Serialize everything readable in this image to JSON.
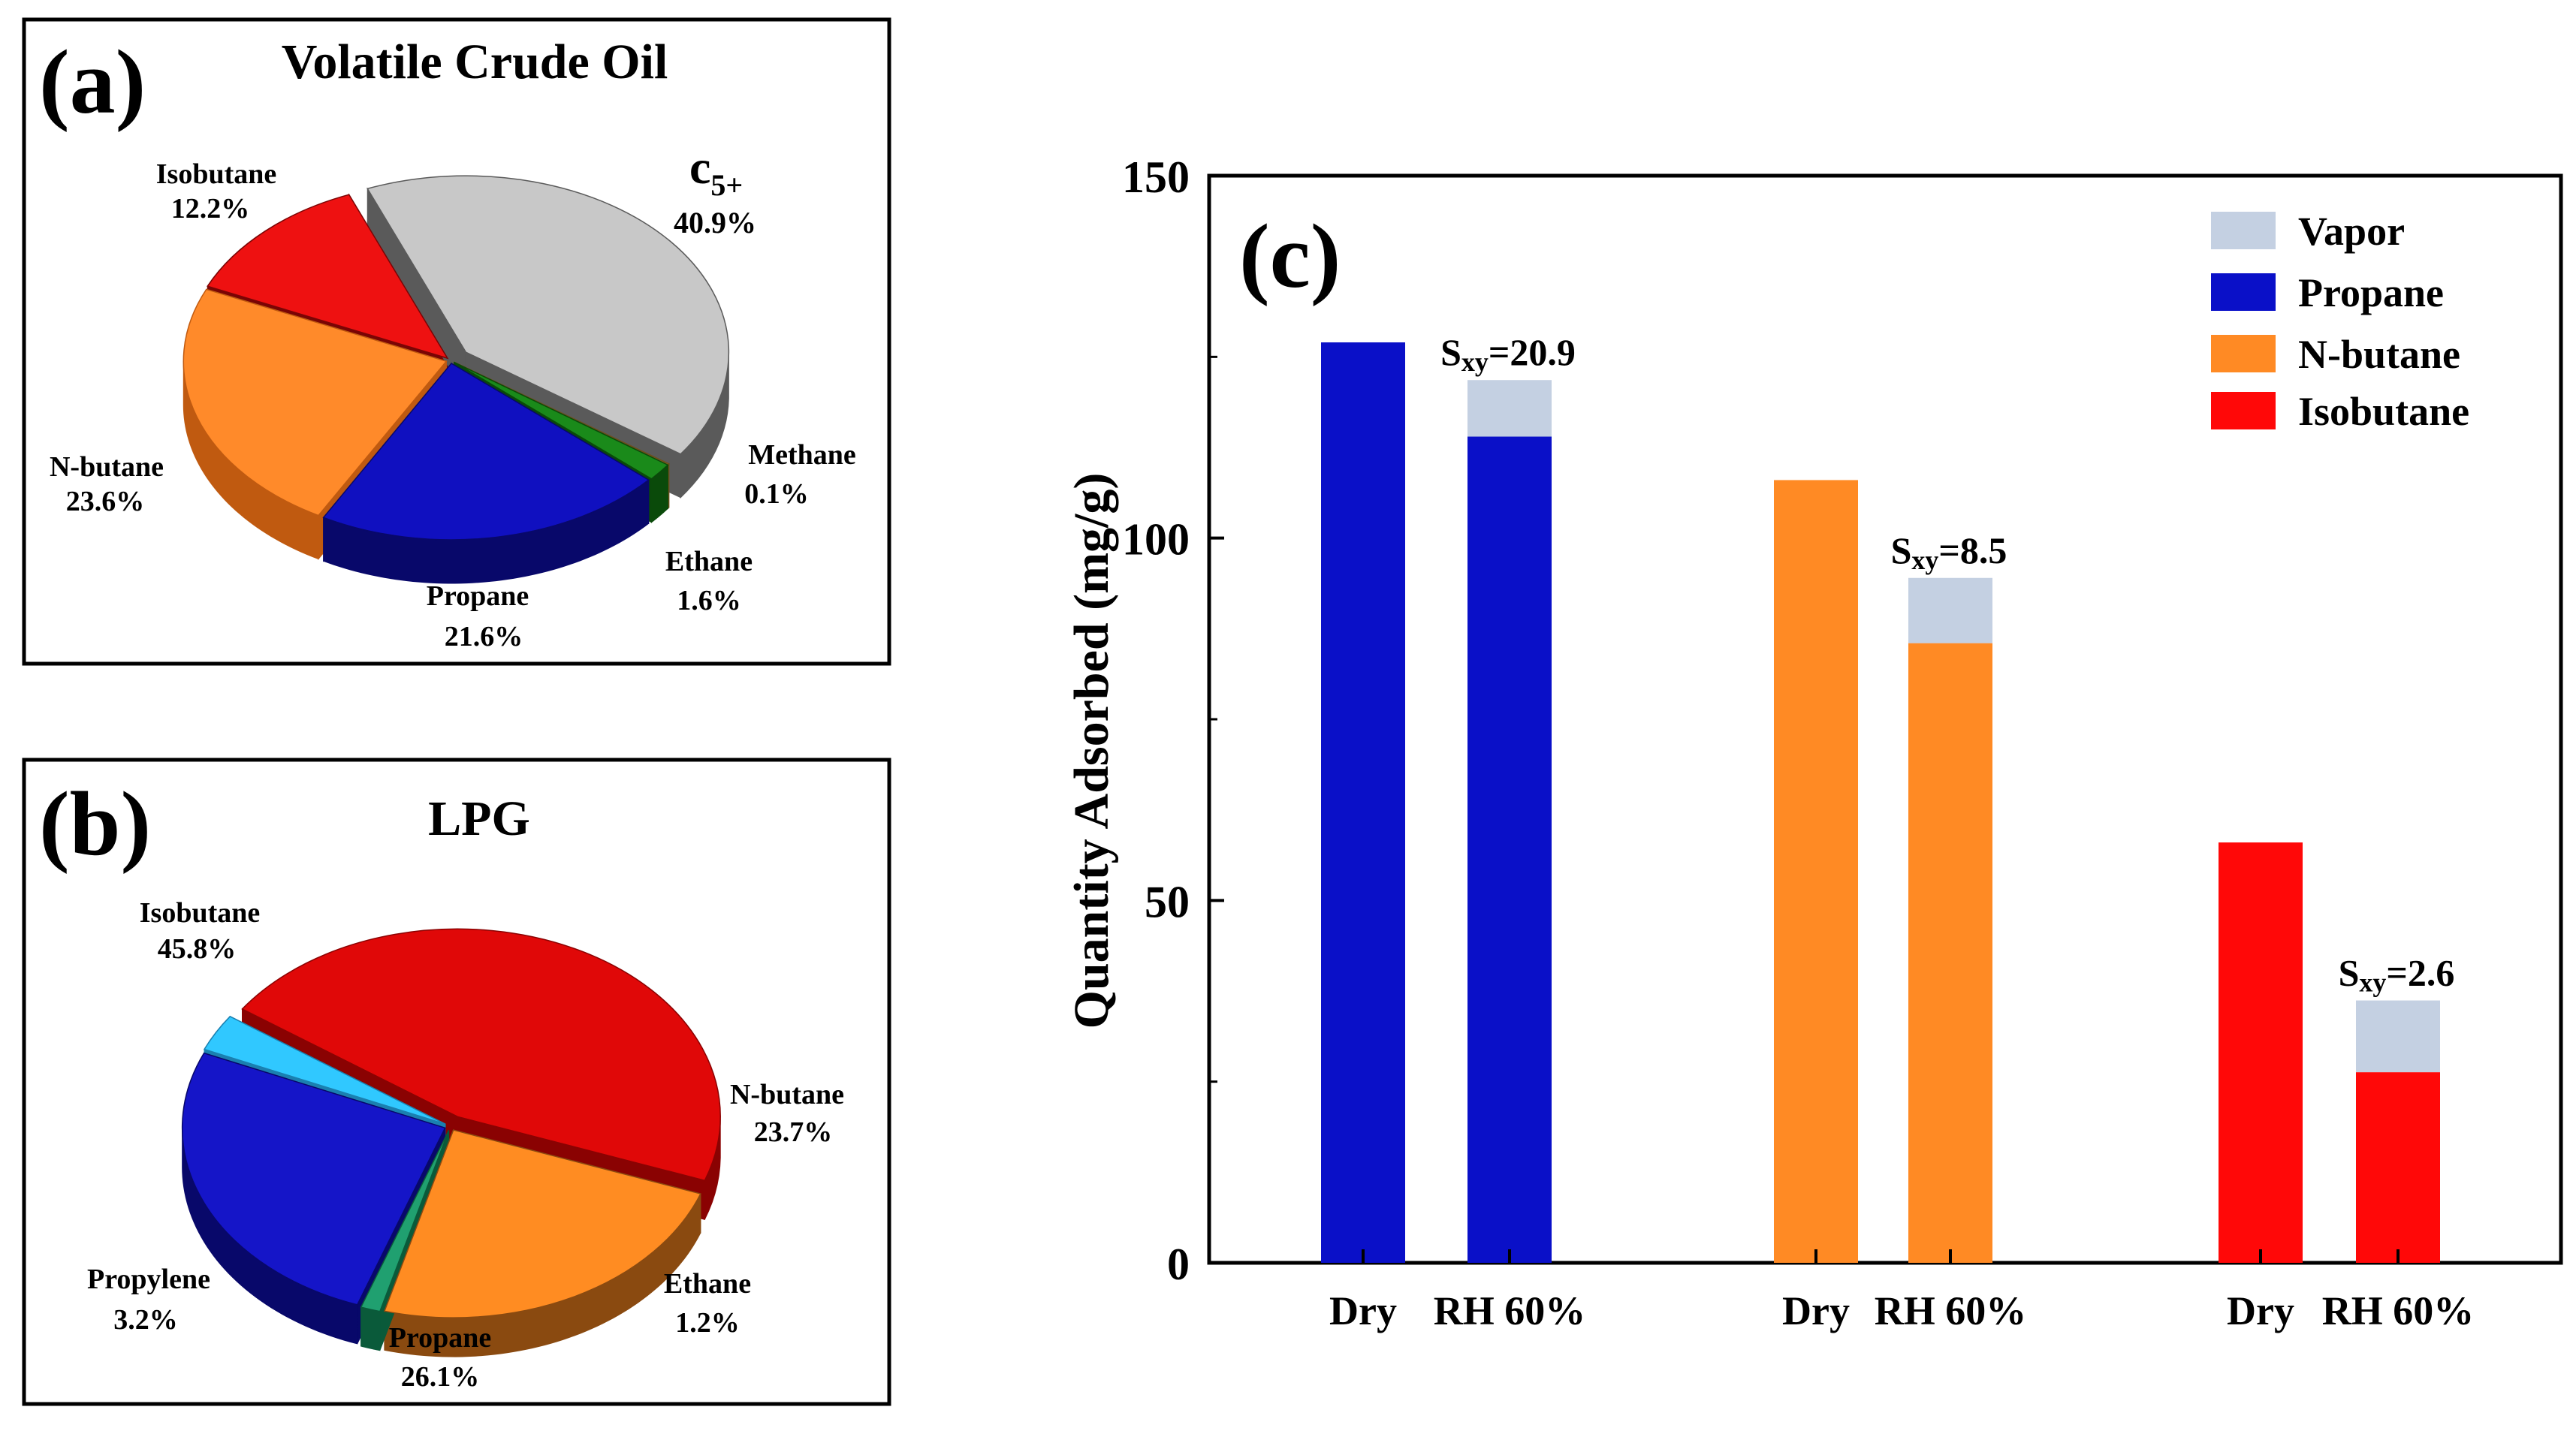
{
  "chart_data": [
    {
      "type": "pie",
      "panel_label": "(a)",
      "title": "Volatile Crude Oil",
      "slices": [
        {
          "name": "c5+",
          "name_main": "c",
          "name_sub": "5+",
          "value": 40.9,
          "pct": "40.9%",
          "color": "#c8c8c8",
          "side": "#5a5a5a"
        },
        {
          "name": "Methane",
          "value": 0.1,
          "pct": "0.1%",
          "color": "#b58a3a",
          "side": "#6e4f1a"
        },
        {
          "name": "Ethane",
          "value": 1.6,
          "pct": "1.6%",
          "color": "#1a8a1a",
          "side": "#0a4a0a"
        },
        {
          "name": "Propane",
          "value": 21.6,
          "pct": "21.6%",
          "color": "#1010c0",
          "side": "#08086a"
        },
        {
          "name": "N-butane",
          "value": 23.6,
          "pct": "23.6%",
          "color": "#ff8a2a",
          "side": "#c05a10"
        },
        {
          "name": "Isobutane",
          "value": 12.2,
          "pct": "12.2%",
          "color": "#ee1111",
          "side": "#7a0505"
        }
      ]
    },
    {
      "type": "pie",
      "panel_label": "(b)",
      "title": "LPG",
      "slices": [
        {
          "name": "Isobutane",
          "value": 45.8,
          "pct": "45.8%",
          "color": "#e00808",
          "side": "#8a0202"
        },
        {
          "name": "N-butane",
          "value": 23.7,
          "pct": "23.7%",
          "color": "#ff8c22",
          "side": "#8a4a10"
        },
        {
          "name": "Ethane",
          "value": 1.2,
          "pct": "1.2%",
          "color": "#20a070",
          "side": "#0a5a3a"
        },
        {
          "name": "Propane",
          "value": 26.1,
          "pct": "26.1%",
          "color": "#1515c8",
          "side": "#08086a"
        },
        {
          "name": "Propylene",
          "value": 3.2,
          "pct": "3.2%",
          "color": "#30c8ff",
          "side": "#1a80b0"
        }
      ]
    },
    {
      "type": "bar",
      "stacked": true,
      "panel_label": "(c)",
      "ylabel": "Quantity Adsorbed (mg/g)",
      "ylim": [
        0,
        150
      ],
      "yticks": [
        0,
        50,
        100,
        150
      ],
      "legend_position": "top-right",
      "legend": [
        {
          "name": "Vapor",
          "color": "#c4d0e2"
        },
        {
          "name": "Propane",
          "color": "#0a10c8"
        },
        {
          "name": "N-butane",
          "color": "#ff8a24"
        },
        {
          "name": "Isobutane",
          "color": "#ff0808"
        }
      ],
      "groups": [
        {
          "gas": "Propane",
          "color": "#0a10c8",
          "bars": [
            {
              "label": "Dry",
              "gas": 127,
              "vapor": 0
            },
            {
              "label": "RH 60%",
              "gas": 114,
              "vapor": 7.8,
              "annotation_main": "S",
              "annotation_sub": "xy",
              "annotation_value": "=20.9"
            }
          ]
        },
        {
          "gas": "N-butane",
          "color": "#ff8a24",
          "bars": [
            {
              "label": "Dry",
              "gas": 108,
              "vapor": 0
            },
            {
              "label": "RH 60%",
              "gas": 85.5,
              "vapor": 9,
              "annotation_main": "S",
              "annotation_sub": "xy",
              "annotation_value": "=8.5"
            }
          ]
        },
        {
          "gas": "Isobutane",
          "color": "#ff0808",
          "bars": [
            {
              "label": "Dry",
              "gas": 58,
              "vapor": 0
            },
            {
              "label": "RH 60%",
              "gas": 26.3,
              "vapor": 9.9,
              "annotation_main": "S",
              "annotation_sub": "xy",
              "annotation_value": "=2.6"
            }
          ]
        }
      ]
    }
  ]
}
